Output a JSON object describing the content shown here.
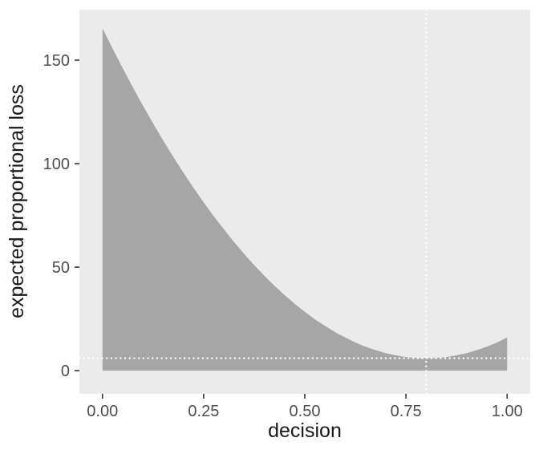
{
  "chart_data": {
    "type": "area",
    "title": "",
    "xlabel": "decision",
    "ylabel": "expected proportional loss",
    "x_ticks": [
      0,
      0.25,
      0.5,
      0.75,
      1
    ],
    "x_tick_labels": [
      "0.00",
      "0.25",
      "0.50",
      "0.75",
      "1.00"
    ],
    "y_ticks": [
      0,
      50,
      100,
      150
    ],
    "y_tick_labels": [
      "0",
      "50",
      "100",
      "150"
    ],
    "xlim": [
      -0.057,
      1.057
    ],
    "ylim": [
      -11.2,
      174.4
    ],
    "baseline": 0,
    "grid": false,
    "legend": false,
    "series": [
      {
        "name": "expected proportional loss",
        "x": [
          0,
          0.025,
          0.05,
          0.075,
          0.1,
          0.125,
          0.15,
          0.175,
          0.2,
          0.225,
          0.25,
          0.275,
          0.3,
          0.325,
          0.35,
          0.375,
          0.4,
          0.425,
          0.45,
          0.475,
          0.5,
          0.525,
          0.55,
          0.575,
          0.6,
          0.625,
          0.65,
          0.675,
          0.7,
          0.725,
          0.75,
          0.775,
          0.8,
          0.825,
          0.85,
          0.875,
          0.9,
          0.925,
          0.95,
          0.975,
          1
        ],
        "y": [
          165.4,
          155.6,
          146.1,
          136.9,
          128.0,
          119.5,
          111.2,
          103.3,
          95.6,
          88.3,
          81.3,
          74.6,
          68.3,
          62.2,
          56.4,
          51.0,
          45.8,
          41.0,
          36.5,
          32.3,
          28.4,
          24.8,
          21.6,
          18.6,
          16.0,
          13.6,
          11.6,
          9.9,
          8.5,
          7.4,
          6.6,
          6.2,
          6.0,
          6.2,
          6.6,
          7.4,
          8.5,
          9.9,
          11.6,
          13.6,
          16.0
        ]
      }
    ],
    "reference_lines": [
      {
        "orientation": "horizontal",
        "value": 6,
        "style": "dotted",
        "color": "#FFFFFF"
      },
      {
        "orientation": "vertical",
        "value": 0.8,
        "style": "dotted",
        "color": "#FFFFFF"
      }
    ],
    "colors": {
      "area_fill": "#A6A6A6",
      "panel_background": "#EBEBEB",
      "figure_background": "#FFFFFF",
      "tick_mark": "#333333",
      "tick_label": "#4D4D4D",
      "axis_title": "#1A1A1A"
    }
  }
}
